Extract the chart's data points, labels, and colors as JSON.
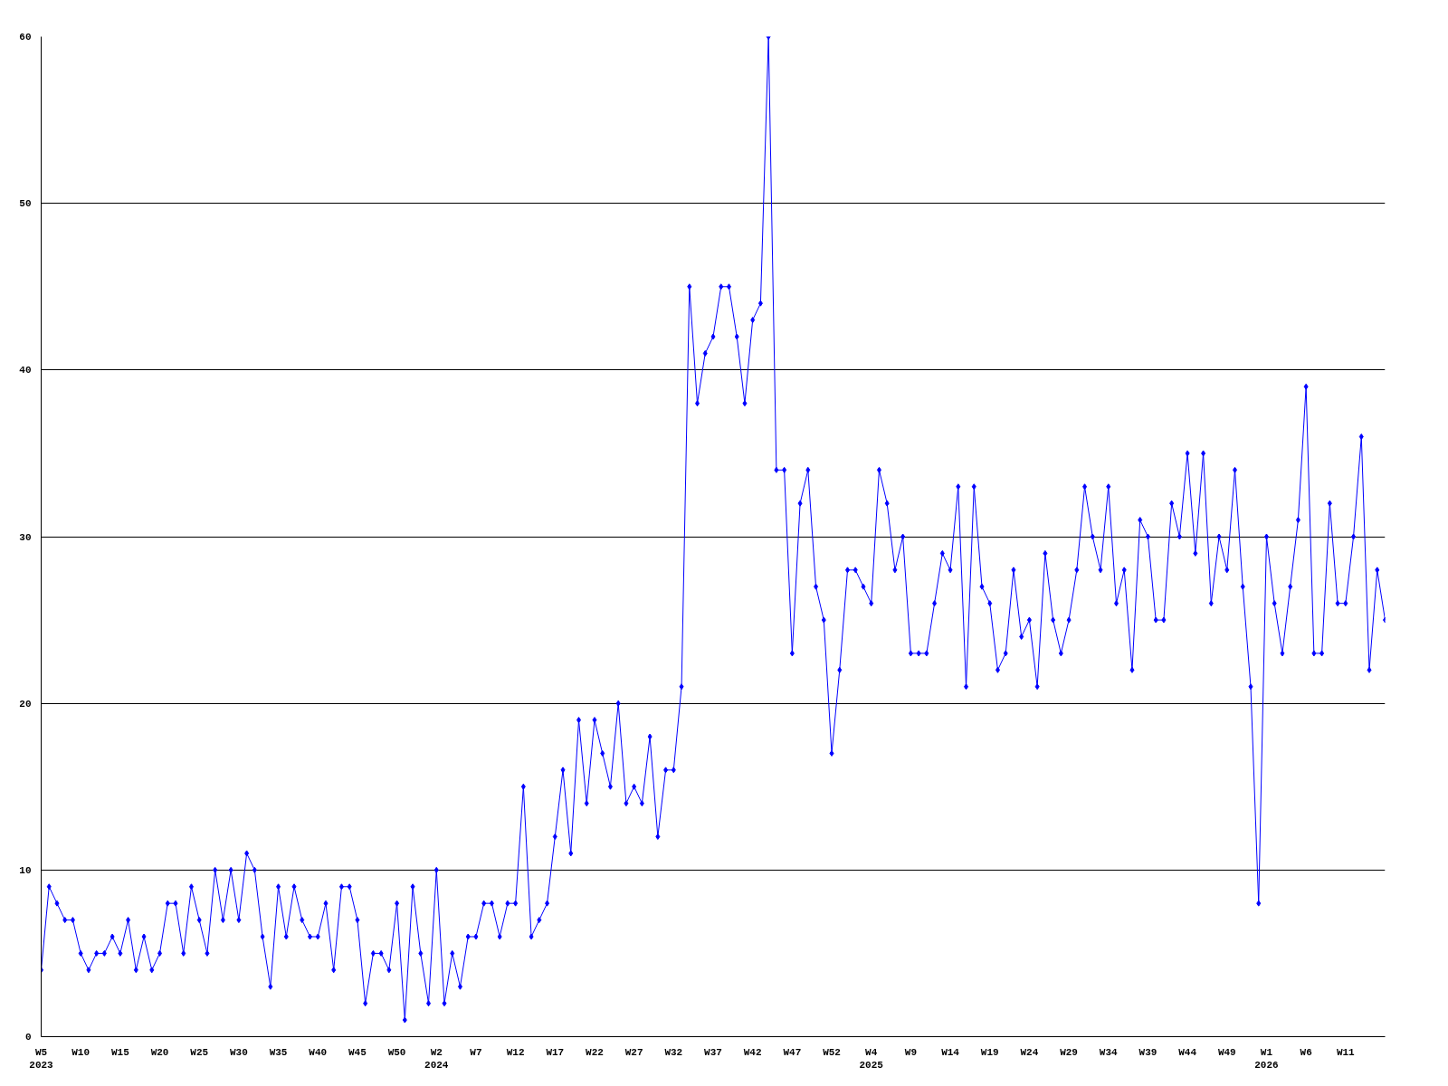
{
  "chart_data": {
    "type": "line",
    "categories": [
      "W5\n2023",
      null,
      null,
      null,
      null,
      "W10",
      null,
      null,
      null,
      null,
      "W15",
      null,
      null,
      null,
      null,
      "W20",
      null,
      null,
      null,
      null,
      "W25",
      null,
      null,
      null,
      null,
      "W30",
      null,
      null,
      null,
      null,
      "W35",
      null,
      null,
      null,
      null,
      "W40",
      null,
      null,
      null,
      null,
      "W45",
      null,
      null,
      null,
      null,
      "W50",
      null,
      null,
      null,
      null,
      "W2\n2024",
      null,
      null,
      null,
      null,
      "W7",
      null,
      null,
      null,
      null,
      "W12",
      null,
      null,
      null,
      null,
      "W17",
      null,
      null,
      null,
      null,
      "W22",
      null,
      null,
      null,
      null,
      "W27",
      null,
      null,
      null,
      null,
      "W32",
      null,
      null,
      null,
      null,
      "W37",
      null,
      null,
      null,
      null,
      "W42",
      null,
      null,
      null,
      null,
      "W47",
      null,
      null,
      null,
      null,
      "W52",
      null,
      null,
      null,
      null,
      "W4\n2025",
      null,
      null,
      null,
      null,
      "W9",
      null,
      null,
      null,
      null,
      "W14",
      null,
      null,
      null,
      null,
      "W19",
      null,
      null,
      null,
      null,
      "W24",
      null,
      null,
      null,
      null,
      "W29",
      null,
      null,
      null,
      null,
      "W34",
      null,
      null,
      null,
      null,
      "W39",
      null,
      null,
      null,
      null,
      "W44",
      null,
      null,
      null,
      null,
      "W49",
      null,
      null,
      null,
      null,
      "W1\n2026",
      null,
      null,
      null,
      null,
      "W6",
      null,
      null,
      null,
      null,
      "W11",
      null,
      null,
      null,
      null,
      null
    ],
    "series": [
      {
        "color": "#0000ff",
        "values": [
          4,
          9,
          8,
          7,
          7,
          5,
          4,
          5,
          5,
          6,
          5,
          7,
          4,
          6,
          4,
          5,
          8,
          8,
          5,
          9,
          7,
          5,
          10,
          7,
          10,
          7,
          11,
          10,
          6,
          3,
          9,
          6,
          9,
          7,
          6,
          6,
          8,
          4,
          9,
          9,
          7,
          2,
          5,
          5,
          4,
          8,
          1,
          9,
          5,
          2,
          10,
          2,
          5,
          3,
          6,
          6,
          8,
          8,
          6,
          8,
          8,
          15,
          6,
          7,
          8,
          12,
          16,
          11,
          19,
          14,
          19,
          17,
          15,
          20,
          14,
          15,
          14,
          18,
          12,
          16,
          16,
          21,
          45,
          38,
          41,
          42,
          45,
          45,
          42,
          38,
          43,
          44,
          60,
          34,
          34,
          23,
          32,
          34,
          27,
          25,
          17,
          22,
          28,
          28,
          27,
          26,
          34,
          32,
          28,
          30,
          23,
          23,
          23,
          26,
          29,
          28,
          33,
          21,
          33,
          27,
          26,
          22,
          23,
          28,
          24,
          25,
          21,
          29,
          25,
          23,
          25,
          28,
          33,
          30,
          28,
          33,
          26,
          28,
          22,
          31,
          30,
          25,
          25,
          32,
          30,
          35,
          29,
          35,
          26,
          30,
          28,
          34,
          27,
          21,
          8,
          30,
          26,
          23,
          27,
          31,
          39,
          23,
          23,
          32,
          26,
          26,
          30,
          36,
          22,
          28,
          25
        ]
      }
    ],
    "ylim": [
      0,
      60
    ],
    "yticks": [
      0,
      10,
      20,
      30,
      40,
      50,
      60
    ],
    "grid": "y",
    "marker": "diamond",
    "line_style": "solid"
  }
}
